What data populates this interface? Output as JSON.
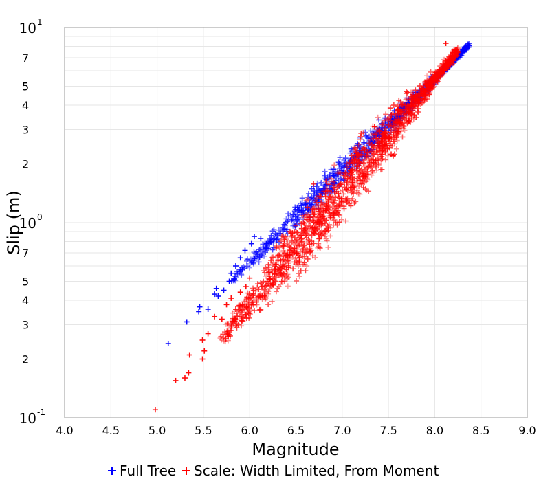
{
  "chart_data": {
    "type": "scatter",
    "title": "",
    "xlabel": "Magnitude",
    "ylabel": "Slip (m)",
    "xlim": [
      4.0,
      9.0
    ],
    "ylim": [
      0.1,
      10
    ],
    "yscale": "log",
    "grid": true,
    "legend_position": "bottom",
    "x_ticks": [
      "4.0",
      "4.5",
      "5.0",
      "5.5",
      "6.0",
      "6.5",
      "7.0",
      "7.5",
      "8.0",
      "8.5",
      "9.0"
    ],
    "y_minor_ticks": [
      {
        "value": 0.2,
        "label": "2"
      },
      {
        "value": 0.3,
        "label": "3"
      },
      {
        "value": 0.4,
        "label": "4"
      },
      {
        "value": 0.5,
        "label": "5"
      },
      {
        "value": 0.7,
        "label": "7"
      },
      {
        "value": 2,
        "label": "2"
      },
      {
        "value": 3,
        "label": "3"
      },
      {
        "value": 4,
        "label": "4"
      },
      {
        "value": 5,
        "label": "5"
      },
      {
        "value": 7,
        "label": "7"
      }
    ],
    "y_decades": [
      {
        "value": 0.1,
        "base": "10",
        "exp": "-1"
      },
      {
        "value": 1,
        "base": "10",
        "exp": "0"
      },
      {
        "value": 10,
        "base": "10",
        "exp": "1"
      }
    ],
    "series": [
      {
        "name": "Full Tree",
        "color": "#0000ff",
        "marker": "+",
        "band": {
          "x_start": 5.8,
          "x_end": 8.38,
          "slip_start": 0.5,
          "slip_end": 8.2,
          "half_width_decades": 0.05
        },
        "outliers": [
          {
            "x": 5.12,
            "y": 0.24
          },
          {
            "x": 5.32,
            "y": 0.31
          },
          {
            "x": 5.45,
            "y": 0.35
          },
          {
            "x": 5.46,
            "y": 0.37
          },
          {
            "x": 5.55,
            "y": 0.36
          },
          {
            "x": 5.62,
            "y": 0.43
          },
          {
            "x": 5.64,
            "y": 0.46
          },
          {
            "x": 5.66,
            "y": 0.42
          },
          {
            "x": 5.72,
            "y": 0.45
          },
          {
            "x": 5.78,
            "y": 0.5
          },
          {
            "x": 5.8,
            "y": 0.55
          },
          {
            "x": 5.85,
            "y": 0.6
          },
          {
            "x": 5.9,
            "y": 0.66
          },
          {
            "x": 5.95,
            "y": 0.72
          },
          {
            "x": 6.02,
            "y": 0.78
          },
          {
            "x": 6.05,
            "y": 0.85
          },
          {
            "x": 6.12,
            "y": 0.83
          },
          {
            "x": 6.18,
            "y": 0.78
          }
        ]
      },
      {
        "name": "Scale: Width Limited, From Moment",
        "color": "#ff0000",
        "marker": "+",
        "band": {
          "x_start": 5.68,
          "x_end": 8.25,
          "slip_start": 0.25,
          "slip_end": 7.6,
          "half_width_decades": 0.12
        },
        "outliers": [
          {
            "x": 4.98,
            "y": 0.11
          },
          {
            "x": 5.2,
            "y": 0.155
          },
          {
            "x": 5.3,
            "y": 0.16
          },
          {
            "x": 5.34,
            "y": 0.17
          },
          {
            "x": 5.35,
            "y": 0.21
          },
          {
            "x": 5.49,
            "y": 0.2
          },
          {
            "x": 5.51,
            "y": 0.22
          },
          {
            "x": 5.49,
            "y": 0.25
          },
          {
            "x": 5.55,
            "y": 0.27
          },
          {
            "x": 5.62,
            "y": 0.33
          },
          {
            "x": 5.7,
            "y": 0.32
          },
          {
            "x": 5.75,
            "y": 0.38
          },
          {
            "x": 5.8,
            "y": 0.41
          },
          {
            "x": 5.85,
            "y": 0.36
          },
          {
            "x": 5.9,
            "y": 0.44
          },
          {
            "x": 5.96,
            "y": 0.47
          },
          {
            "x": 6.0,
            "y": 0.52
          },
          {
            "x": 8.12,
            "y": 8.3
          },
          {
            "x": 7.35,
            "y": 3.1
          },
          {
            "x": 7.42,
            "y": 2.6
          },
          {
            "x": 7.5,
            "y": 2.7
          },
          {
            "x": 7.55,
            "y": 2.2
          }
        ]
      }
    ]
  }
}
